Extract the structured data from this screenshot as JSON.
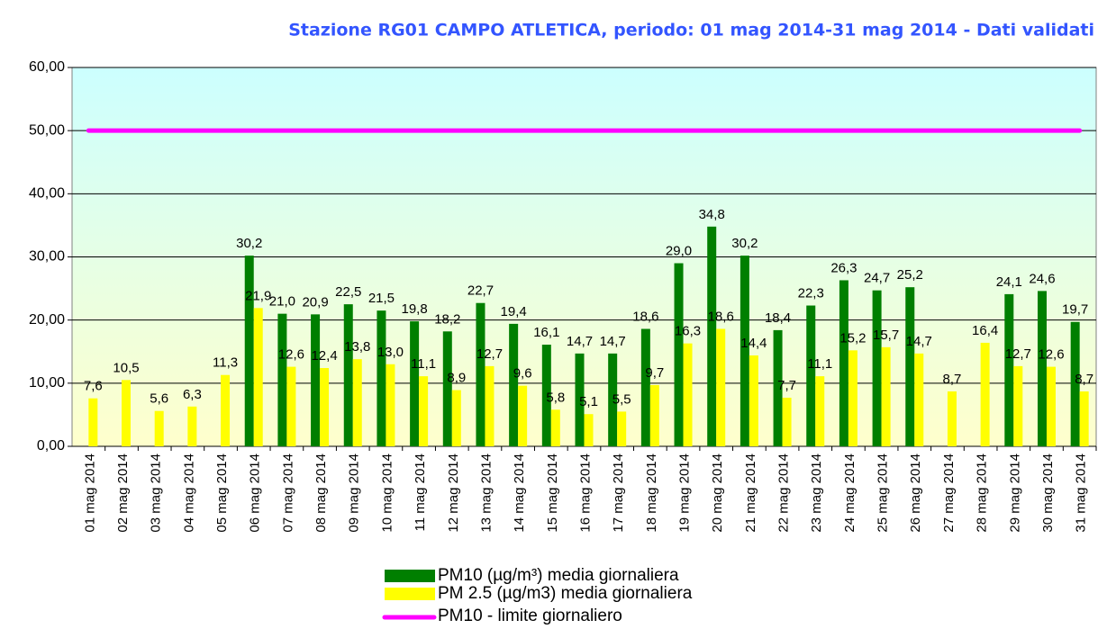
{
  "chart_data": {
    "type": "bar",
    "title": "Stazione RG01 CAMPO ATLETICA, periodo: 01 mag 2014-31 mag 2014 - Dati validati",
    "categories": [
      "01 mag 2014",
      "02 mag 2014",
      "03 mag 2014",
      "04 mag 2014",
      "05 mag 2014",
      "06 mag 2014",
      "07 mag 2014",
      "08 mag 2014",
      "09 mag 2014",
      "10 mag 2014",
      "11 mag 2014",
      "12 mag 2014",
      "13 mag 2014",
      "14 mag 2014",
      "15 mag 2014",
      "16 mag 2014",
      "17 mag 2014",
      "18 mag 2014",
      "19 mag 2014",
      "20 mag 2014",
      "21 mag 2014",
      "22 mag 2014",
      "23 mag 2014",
      "24 mag 2014",
      "25 mag 2014",
      "26 mag 2014",
      "27 mag 2014",
      "28 mag 2014",
      "29 mag 2014",
      "30 mag 2014",
      "31 mag 2014"
    ],
    "series": [
      {
        "name": "PM10 (µg/m³) media giornaliera",
        "color": "#007f00",
        "type": "bar",
        "values": [
          null,
          null,
          null,
          null,
          null,
          30.2,
          21.0,
          20.9,
          22.5,
          21.5,
          19.8,
          18.2,
          22.7,
          19.4,
          16.1,
          14.7,
          14.7,
          18.6,
          29.0,
          34.8,
          30.2,
          18.4,
          22.3,
          26.3,
          24.7,
          25.2,
          null,
          null,
          24.1,
          24.6,
          19.7
        ],
        "value_labels": [
          null,
          null,
          null,
          null,
          null,
          "30,2",
          "21,0",
          "20,9",
          "22,5",
          "21,5",
          "19,8",
          "18,2",
          "22,7",
          "19,4",
          "16,1",
          "14,7",
          "14,7",
          "18,6",
          "29,0",
          "34,8",
          "30,2",
          "18,4",
          "22,3",
          "26,3",
          "24,7",
          "25,2",
          null,
          null,
          "24,1",
          "24,6",
          "19,7"
        ]
      },
      {
        "name": "PM 2.5 (µg/m3) media giornaliera",
        "color": "#ffff00",
        "type": "bar",
        "values": [
          7.6,
          10.5,
          5.6,
          6.3,
          11.3,
          21.9,
          12.6,
          12.4,
          13.8,
          13.0,
          11.1,
          8.9,
          12.7,
          9.6,
          5.8,
          5.1,
          5.5,
          9.7,
          16.3,
          18.6,
          14.4,
          7.7,
          11.1,
          15.2,
          15.7,
          14.7,
          8.7,
          16.4,
          12.7,
          12.6,
          8.7
        ],
        "value_labels": [
          "7,6",
          "10,5",
          "5,6",
          "6,3",
          "11,3",
          "21,9",
          "12,6",
          "12,4",
          "13,8",
          "13,0",
          "11,1",
          "8,9",
          "12,7",
          "9,6",
          "5,8",
          "5,1",
          "5,5",
          "9,7",
          "16,3",
          "18,6",
          "14,4",
          "7,7",
          "11,1",
          "15,2",
          "15,7",
          "14,7",
          "8,7",
          "16,4",
          "12,7",
          "12,6",
          "8,7"
        ]
      },
      {
        "name": "PM10 - limite giornaliero",
        "color": "#ff00ff",
        "type": "line",
        "values": [
          50,
          50,
          50,
          50,
          50,
          50,
          50,
          50,
          50,
          50,
          50,
          50,
          50,
          50,
          50,
          50,
          50,
          50,
          50,
          50,
          50,
          50,
          50,
          50,
          50,
          50,
          50,
          50,
          50,
          50,
          50
        ]
      }
    ],
    "ylim": [
      0,
      60
    ],
    "yticks": [
      {
        "value": 0,
        "label": "0,00"
      },
      {
        "value": 10,
        "label": "10,00"
      },
      {
        "value": 20,
        "label": "20,00"
      },
      {
        "value": 30,
        "label": "30,00"
      },
      {
        "value": 40,
        "label": "40,00"
      },
      {
        "value": 50,
        "label": "50,00"
      },
      {
        "value": 60,
        "label": "60,00"
      }
    ],
    "grid": true
  }
}
